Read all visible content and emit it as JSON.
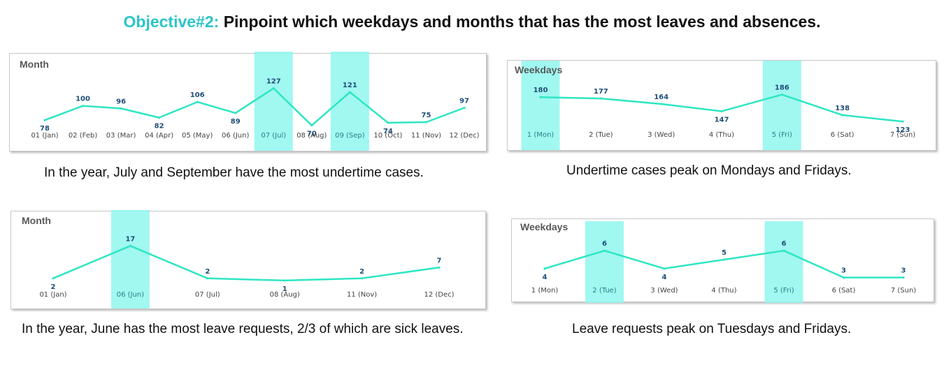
{
  "title": {
    "prefix": "Objective#2:",
    "text": "Pinpoint which weekdays and months that has the most leaves and absences."
  },
  "colors": {
    "line": "#2ee6c3",
    "highlight": "#8ff7ef",
    "accent": "#2cc4c9",
    "label": "#1f4e79"
  },
  "captions": {
    "undertime_month": "In the year, July and September have the most undertime cases.",
    "undertime_weekday": "Undertime cases peak on Mondays and Fridays.",
    "leave_month": "In the year, June has the most leave requests, 2/3 of which are sick leaves.",
    "leave_weekday": "Leave requests peak on Tuesdays and Fridays."
  },
  "chart_data": [
    {
      "id": "undertime_month",
      "type": "line",
      "title": "Month",
      "categories": [
        "01 (Jan)",
        "02 (Feb)",
        "03 (Mar)",
        "04 (Apr)",
        "05 (May)",
        "06 (Jun)",
        "07 (Jul)",
        "08 (Aug)",
        "09 (Sep)",
        "10 (Oct)",
        "11 (Nov)",
        "12 (Dec)"
      ],
      "values": [
        78,
        100,
        96,
        82,
        106,
        89,
        127,
        70,
        121,
        74,
        75,
        97
      ],
      "highlight": [
        "07 (Jul)",
        "09 (Sep)"
      ],
      "ylim": [
        60,
        135
      ]
    },
    {
      "id": "undertime_weekday",
      "type": "line",
      "title": "Weekdays",
      "categories": [
        "1 (Mon)",
        "2 (Tue)",
        "3 (Wed)",
        "4 (Thu)",
        "5 (Fri)",
        "6 (Sat)",
        "7 (Sun)"
      ],
      "values": [
        180,
        177,
        164,
        147,
        186,
        138,
        123
      ],
      "highlight": [
        "1 (Mon)",
        "5 (Fri)"
      ],
      "ylim": [
        110,
        200
      ]
    },
    {
      "id": "leave_month",
      "type": "line",
      "title": "Month",
      "categories": [
        "01 (Jan)",
        "06 (Jun)",
        "07 (Jul)",
        "08 (Aug)",
        "11 (Nov)",
        "12 (Dec)"
      ],
      "values": [
        2,
        17,
        2,
        1,
        2,
        7
      ],
      "highlight": [
        "06 (Jun)"
      ],
      "ylim": [
        0,
        20
      ]
    },
    {
      "id": "leave_weekday",
      "type": "line",
      "title": "Weekdays",
      "categories": [
        "1 (Mon)",
        "2 (Tue)",
        "3 (Wed)",
        "4 (Thu)",
        "5 (Fri)",
        "6 (Sat)",
        "7 (Sun)"
      ],
      "values": [
        4,
        6,
        4,
        5,
        6,
        3,
        3
      ],
      "highlight": [
        "2 (Tue)",
        "5 (Fri)"
      ],
      "ylim": [
        2.5,
        6.8
      ]
    }
  ]
}
